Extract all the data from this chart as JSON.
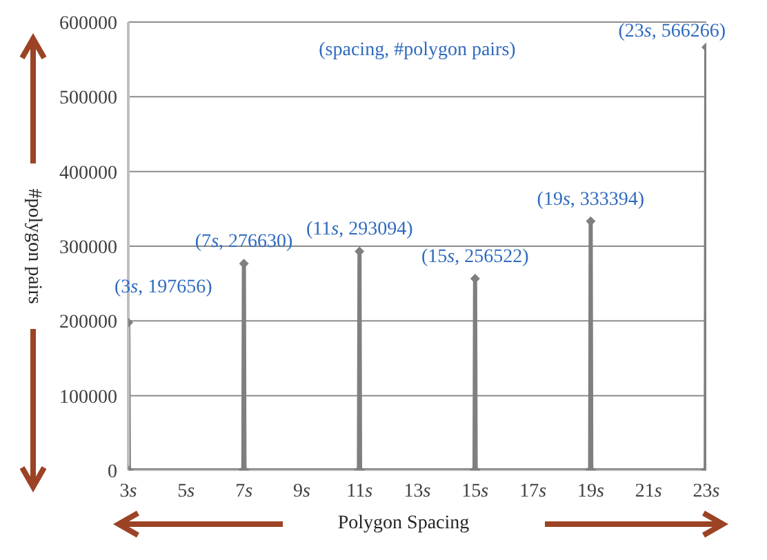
{
  "chart_data": {
    "type": "line",
    "xlabel": "Polygon Spacing",
    "ylabel": "#polygon pairs",
    "x": [
      3,
      3.02,
      6.98,
      7,
      7.02,
      10.98,
      11,
      11.02,
      14.98,
      15,
      15.02,
      18.98,
      19,
      19.02,
      22.98,
      23
    ],
    "values": [
      197656,
      0,
      0,
      276630,
      0,
      0,
      293094,
      0,
      0,
      256522,
      0,
      0,
      333394,
      0,
      0,
      566266
    ],
    "color": "#7f7f7f",
    "marker": "diamond",
    "grid": "y",
    "xlim": [
      3,
      23
    ],
    "xticks": [
      {
        "value": 3,
        "label": "3s"
      },
      {
        "value": 5,
        "label": "5s"
      },
      {
        "value": 7,
        "label": "7s"
      },
      {
        "value": 9,
        "label": "9s"
      },
      {
        "value": 11,
        "label": "11s"
      },
      {
        "value": 13,
        "label": "13s"
      },
      {
        "value": 15,
        "label": "15s"
      },
      {
        "value": 17,
        "label": "17s"
      },
      {
        "value": 19,
        "label": "19s"
      },
      {
        "value": 21,
        "label": "21s"
      },
      {
        "value": 23,
        "label": "23s"
      }
    ],
    "ylim": [
      0,
      600000
    ],
    "yticks": [
      0,
      100000,
      200000,
      300000,
      400000,
      500000,
      600000
    ],
    "annotations": [
      "(spacing, #polygon pairs)",
      {
        "text": "(3s, 197656)",
        "x": 3,
        "y": 197656
      },
      {
        "text": "(7s, 276630)",
        "x": 7,
        "y": 276630
      },
      {
        "text": "(11s, 293094)",
        "x": 11,
        "y": 293094
      },
      {
        "text": "(15s, 256522)",
        "x": 15,
        "y": 256522
      },
      {
        "text": "(19s, 333394)",
        "x": 19,
        "y": 333394
      },
      {
        "text": "(23s, 566266)",
        "x": 23,
        "y": 566266
      }
    ]
  }
}
